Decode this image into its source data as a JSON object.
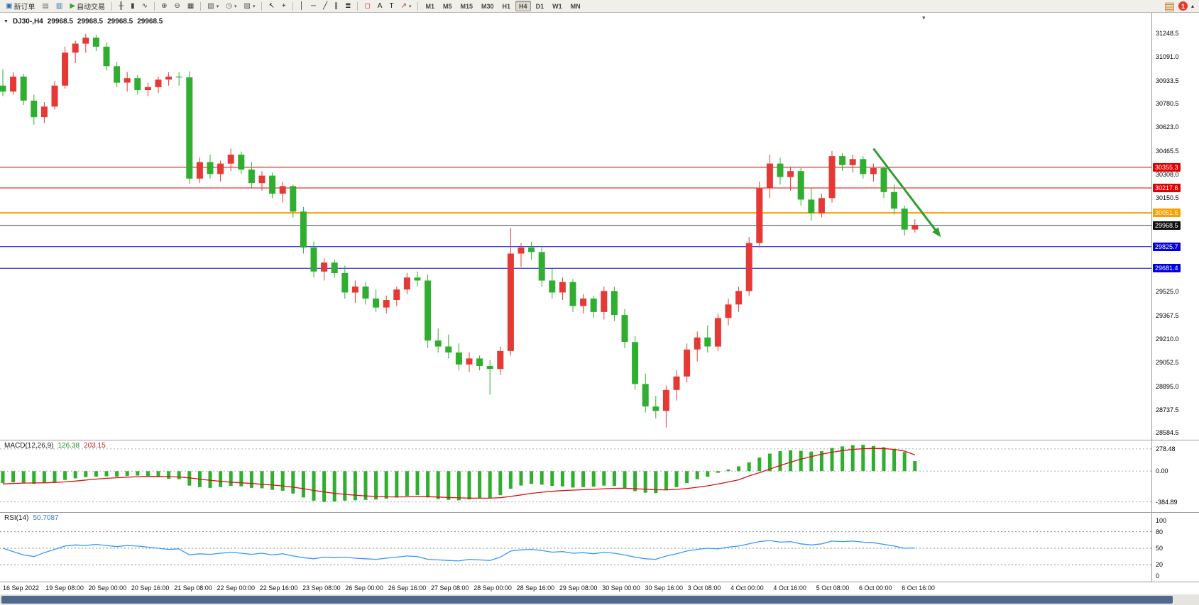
{
  "icons": {
    "collapse": "▼",
    "shift_marker": "▾",
    "caret": "▾",
    "overflow": "▴"
  },
  "colors": {
    "up": "#e53935",
    "down": "#2fae2f",
    "macd_hist": "#2fae2f",
    "macd_signal": "#dd1111",
    "rsi_line": "#3399ff",
    "hline_red": "#e00000",
    "hline_blue": "#0000e0",
    "hline_orange": "#ff9d00",
    "current_line": "#444444",
    "current_badge": "#101010",
    "arrow": "#2f9e2f",
    "scrollbar_thumb": "#51688e"
  },
  "toolbar": {
    "groups": [
      {
        "items": [
          {
            "name": "new-order",
            "glyph": "▣",
            "color": "#2e6db4",
            "label": "新订单"
          },
          {
            "name": "chart-window",
            "glyph": "▤",
            "color": "#777777"
          },
          {
            "name": "market-watch",
            "glyph": "▥",
            "color": "#2e6db4"
          },
          {
            "name": "autotrade",
            "glyph": "▶",
            "color": "#2faa2f",
            "label": "自动交易"
          }
        ]
      },
      {
        "items": [
          {
            "name": "bar-chart",
            "glyph": "╫",
            "color": "#444444"
          },
          {
            "name": "candlestick-chart",
            "glyph": "▮",
            "color": "#444444"
          },
          {
            "name": "line-chart",
            "glyph": "∿",
            "color": "#444444"
          }
        ]
      },
      {
        "items": [
          {
            "name": "zoom-in",
            "glyph": "⊕",
            "color": "#444444"
          },
          {
            "name": "zoom-out",
            "glyph": "⊖",
            "color": "#444444"
          },
          {
            "name": "tile-windows",
            "glyph": "▦",
            "color": "#444444"
          }
        ]
      },
      {
        "items": [
          {
            "name": "new-chart",
            "glyph": "▧",
            "color": "#555555",
            "caret": true
          },
          {
            "name": "profiles",
            "glyph": "◷",
            "color": "#555555",
            "caret": true
          },
          {
            "name": "templates",
            "glyph": "▨",
            "color": "#555555",
            "caret": true
          }
        ]
      },
      {
        "items": [
          {
            "name": "cursor",
            "glyph": "↖",
            "color": "#222222"
          },
          {
            "name": "crosshair",
            "glyph": "+",
            "color": "#222222"
          }
        ]
      },
      {
        "items": [
          {
            "name": "vertical-line",
            "glyph": "│",
            "color": "#222222"
          },
          {
            "name": "horizontal-line",
            "glyph": "─",
            "color": "#222222"
          },
          {
            "name": "trendline",
            "glyph": "╱",
            "color": "#222222"
          },
          {
            "name": "equidistant-channel",
            "glyph": "∥",
            "color": "#222222"
          },
          {
            "name": "fibonacci",
            "glyph": "≣",
            "color": "#222222"
          }
        ]
      },
      {
        "items": [
          {
            "name": "shapes",
            "glyph": "◻",
            "color": "#b03030"
          },
          {
            "name": "text",
            "glyph": "A",
            "color": "#222222"
          },
          {
            "name": "text-label",
            "glyph": "T",
            "color": "#222222"
          },
          {
            "name": "arrows",
            "glyph": "↗",
            "color": "#b03030",
            "caret": true
          }
        ]
      }
    ],
    "timeframes": {
      "items": [
        "M1",
        "M5",
        "M15",
        "M30",
        "H1",
        "H4",
        "D1",
        "W1",
        "MN"
      ],
      "active": "H4"
    },
    "right": {
      "icons": [
        {
          "name": "mini-chart",
          "glyph": "▤",
          "color": "#c07820"
        }
      ],
      "notification_count": "1"
    }
  },
  "chart_header": {
    "symbol": "DJ30-,H4",
    "open": "29968.5",
    "high": "29968.5",
    "low": "29968.5",
    "close": "29968.5"
  },
  "chart_data": {
    "type": "candlestick",
    "symbol": "DJ30-,H4",
    "price_axis_ticks": [
      "31248.5",
      "31091.0",
      "30933.5",
      "30780.5",
      "30623.0",
      "30465.5",
      "30308.0",
      "30150.5",
      "29525.0",
      "29367.5",
      "29210.0",
      "29052.5",
      "28895.0",
      "28737.5",
      "28584.5"
    ],
    "time_labels": [
      "16 Sep 2022",
      "19 Sep 08:00",
      "20 Sep 00:00",
      "20 Sep 16:00",
      "21 Sep 08:00",
      "22 Sep 00:00",
      "22 Sep 16:00",
      "23 Sep 08:00",
      "26 Sep 00:00",
      "26 Sep 16:00",
      "27 Sep 08:00",
      "28 Sep 00:00",
      "28 Sep 16:00",
      "29 Sep 08:00",
      "30 Sep 00:00",
      "30 Sep 16:00",
      "3 Oct 08:00",
      "4 Oct 00:00",
      "4 Oct 16:00",
      "5 Oct 08:00",
      "6 Oct 00:00",
      "6 Oct 16:00"
    ],
    "hlines": [
      {
        "price": 30355.3,
        "label": "30355.3",
        "color": "#e00000",
        "width": 1
      },
      {
        "price": 30217.6,
        "label": "30217.6",
        "color": "#e00000",
        "width": 1
      },
      {
        "price": 30051.6,
        "label": "30051.6",
        "color": "#ff9d00",
        "width": 2
      },
      {
        "price": 29825.7,
        "label": "29825.7",
        "color": "#0000e0",
        "width": 1
      },
      {
        "price": 29681.4,
        "label": "29681.4",
        "color": "#0000e0",
        "width": 1
      }
    ],
    "current_price": {
      "price": 29968.5,
      "label": "29968.5",
      "line_color": "#444444",
      "badge_color": "#101010"
    },
    "trend_arrow": {
      "from_bar": 84,
      "from_price": 30480,
      "to_bar": 90.5,
      "to_price": 29890,
      "color": "#2f9e2f"
    },
    "candles": [
      [
        30900,
        31010,
        30830,
        30860
      ],
      [
        30860,
        30990,
        30840,
        30960
      ],
      [
        30960,
        30980,
        30770,
        30800
      ],
      [
        30800,
        30840,
        30640,
        30690
      ],
      [
        30690,
        30790,
        30650,
        30760
      ],
      [
        30760,
        30930,
        30740,
        30900
      ],
      [
        30900,
        31160,
        30880,
        31120
      ],
      [
        31120,
        31200,
        31050,
        31180
      ],
      [
        31180,
        31245,
        31120,
        31220
      ],
      [
        31220,
        31240,
        31130,
        31160
      ],
      [
        31160,
        31190,
        31000,
        31030
      ],
      [
        31030,
        31060,
        30890,
        30920
      ],
      [
        30920,
        30990,
        30860,
        30950
      ],
      [
        30950,
        30970,
        30840,
        30870
      ],
      [
        30870,
        30920,
        30830,
        30890
      ],
      [
        30890,
        30960,
        30850,
        30940
      ],
      [
        30940,
        30990,
        30900,
        30960
      ],
      [
        30960,
        30990,
        30900,
        30955
      ],
      [
        30955,
        30995,
        30245,
        30280
      ],
      [
        30280,
        30420,
        30250,
        30390
      ],
      [
        30390,
        30440,
        30280,
        30310
      ],
      [
        30310,
        30400,
        30260,
        30380
      ],
      [
        30380,
        30480,
        30330,
        30440
      ],
      [
        30440,
        30460,
        30310,
        30340
      ],
      [
        30340,
        30390,
        30220,
        30250
      ],
      [
        30250,
        30330,
        30200,
        30300
      ],
      [
        30300,
        30320,
        30150,
        30180
      ],
      [
        30180,
        30260,
        30120,
        30230
      ],
      [
        30230,
        30240,
        30020,
        30060
      ],
      [
        30060,
        30090,
        29780,
        29820
      ],
      [
        29820,
        29860,
        29620,
        29660
      ],
      [
        29660,
        29750,
        29600,
        29720
      ],
      [
        29720,
        29740,
        29620,
        29650
      ],
      [
        29650,
        29700,
        29480,
        29520
      ],
      [
        29520,
        29600,
        29450,
        29560
      ],
      [
        29560,
        29590,
        29440,
        29480
      ],
      [
        29480,
        29540,
        29390,
        29420
      ],
      [
        29420,
        29500,
        29380,
        29470
      ],
      [
        29470,
        29560,
        29430,
        29540
      ],
      [
        29540,
        29650,
        29510,
        29620
      ],
      [
        29620,
        29660,
        29560,
        29600
      ],
      [
        29600,
        29640,
        29150,
        29200
      ],
      [
        29200,
        29280,
        29120,
        29160
      ],
      [
        29160,
        29240,
        29080,
        29120
      ],
      [
        29120,
        29180,
        29000,
        29040
      ],
      [
        29040,
        29120,
        28990,
        29080
      ],
      [
        29080,
        29100,
        29000,
        29030
      ],
      [
        29030,
        29070,
        28840,
        29010
      ],
      [
        29010,
        29160,
        28970,
        29130
      ],
      [
        29130,
        29950,
        29100,
        29780
      ],
      [
        29780,
        29850,
        29690,
        29820
      ],
      [
        29820,
        29860,
        29740,
        29790
      ],
      [
        29790,
        29830,
        29560,
        29600
      ],
      [
        29600,
        29680,
        29480,
        29520
      ],
      [
        29520,
        29620,
        29470,
        29590
      ],
      [
        29590,
        29610,
        29390,
        29430
      ],
      [
        29430,
        29510,
        29380,
        29480
      ],
      [
        29480,
        29500,
        29350,
        29390
      ],
      [
        29390,
        29560,
        29340,
        29530
      ],
      [
        29530,
        29560,
        29330,
        29370
      ],
      [
        29370,
        29410,
        29150,
        29190
      ],
      [
        29190,
        29230,
        28870,
        28910
      ],
      [
        28910,
        28980,
        28720,
        28760
      ],
      [
        28760,
        28830,
        28680,
        28730
      ],
      [
        28730,
        28900,
        28620,
        28870
      ],
      [
        28870,
        29000,
        28800,
        28960
      ],
      [
        28960,
        29180,
        28920,
        29140
      ],
      [
        29140,
        29260,
        29060,
        29220
      ],
      [
        29220,
        29300,
        29120,
        29160
      ],
      [
        29160,
        29380,
        29130,
        29350
      ],
      [
        29350,
        29480,
        29300,
        29440
      ],
      [
        29440,
        29560,
        29390,
        29530
      ],
      [
        29530,
        29890,
        29500,
        29850
      ],
      [
        29850,
        30260,
        29820,
        30220
      ],
      [
        30220,
        30440,
        30150,
        30380
      ],
      [
        30380,
        30420,
        30240,
        30290
      ],
      [
        30290,
        30360,
        30200,
        30330
      ],
      [
        30330,
        30350,
        30100,
        30140
      ],
      [
        30140,
        30220,
        30000,
        30050
      ],
      [
        30050,
        30180,
        30020,
        30150
      ],
      [
        30150,
        30465,
        30120,
        30430
      ],
      [
        30430,
        30450,
        30330,
        30370
      ],
      [
        30370,
        30440,
        30320,
        30410
      ],
      [
        30410,
        30430,
        30280,
        30310
      ],
      [
        30310,
        30380,
        30260,
        30350
      ],
      [
        30350,
        30360,
        30150,
        30190
      ],
      [
        30190,
        30240,
        30040,
        30080
      ],
      [
        30080,
        30100,
        29900,
        29940
      ],
      [
        29940,
        30010,
        29920,
        29968.5
      ]
    ],
    "macd": {
      "name": "MACD(12,26,9)",
      "value_main": "126.38",
      "value_signal": "203.15",
      "axis": [
        {
          "label": "278.48",
          "value": 278.48
        },
        {
          "label": "0.00",
          "value": 0
        },
        {
          "label": "-384.89",
          "value": -384.89
        }
      ],
      "histogram": [
        -150,
        -140,
        -145,
        -160,
        -150,
        -135,
        -110,
        -90,
        -75,
        -70,
        -65,
        -70,
        -60,
        -55,
        -60,
        -75,
        -95,
        -100,
        -180,
        -200,
        -210,
        -200,
        -185,
        -190,
        -210,
        -215,
        -235,
        -245,
        -280,
        -330,
        -370,
        -385,
        -380,
        -370,
        -365,
        -360,
        -355,
        -345,
        -330,
        -310,
        -300,
        -330,
        -350,
        -360,
        -365,
        -355,
        -345,
        -340,
        -300,
        -220,
        -180,
        -160,
        -170,
        -185,
        -190,
        -205,
        -200,
        -195,
        -180,
        -185,
        -210,
        -250,
        -270,
        -275,
        -240,
        -200,
        -150,
        -100,
        -70,
        -20,
        20,
        60,
        110,
        170,
        220,
        250,
        260,
        255,
        245,
        250,
        290,
        310,
        325,
        330,
        315,
        300,
        280,
        240,
        126.38
      ],
      "signal": [
        -160,
        -155,
        -150,
        -148,
        -146,
        -142,
        -135,
        -125,
        -112,
        -100,
        -90,
        -83,
        -76,
        -70,
        -66,
        -65,
        -68,
        -73,
        -85,
        -100,
        -115,
        -128,
        -138,
        -146,
        -155,
        -165,
        -175,
        -185,
        -200,
        -220,
        -242,
        -262,
        -278,
        -291,
        -302,
        -311,
        -318,
        -322,
        -323,
        -322,
        -319,
        -320,
        -325,
        -330,
        -335,
        -338,
        -339,
        -339,
        -333,
        -317,
        -298,
        -279,
        -264,
        -253,
        -244,
        -238,
        -233,
        -228,
        -221,
        -216,
        -215,
        -220,
        -227,
        -233,
        -234,
        -229,
        -218,
        -202,
        -184,
        -161,
        -136,
        -109,
        -60,
        -20,
        25,
        70,
        112,
        150,
        183,
        212,
        237,
        257,
        272,
        281,
        285,
        283,
        272,
        252,
        203.15
      ]
    },
    "rsi": {
      "name": "RSI(14)",
      "value": "50.7087",
      "axis": [
        {
          "label": "100",
          "value": 100
        },
        {
          "label": "80",
          "value": 80
        },
        {
          "label": "50",
          "value": 50
        },
        {
          "label": "20",
          "value": 20
        },
        {
          "label": "0",
          "value": 0
        }
      ],
      "levels": [
        80,
        50,
        20
      ],
      "values": [
        50,
        44,
        38,
        35,
        42,
        48,
        54,
        56,
        55,
        57,
        55,
        53,
        55,
        54,
        52,
        50,
        48,
        49,
        38,
        40,
        39,
        41,
        43,
        41,
        39,
        41,
        38,
        40,
        36,
        33,
        31,
        34,
        33,
        34,
        32,
        31,
        30,
        32,
        34,
        36,
        35,
        30,
        29,
        28,
        27,
        30,
        29,
        28,
        34,
        45,
        47,
        48,
        46,
        43,
        44,
        41,
        42,
        40,
        43,
        41,
        38,
        34,
        31,
        30,
        36,
        40,
        45,
        48,
        50,
        49,
        52,
        54,
        58,
        62,
        64,
        61,
        62,
        58,
        56,
        58,
        63,
        62,
        63,
        61,
        60,
        57,
        54,
        50,
        50.7
      ]
    }
  }
}
